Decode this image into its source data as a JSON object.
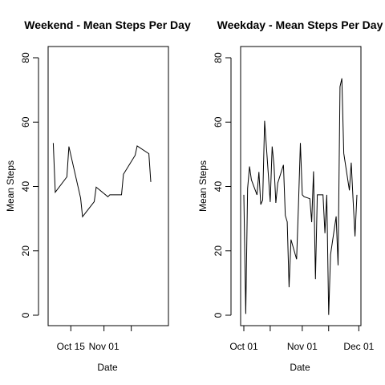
{
  "chart_data": [
    {
      "type": "line",
      "title": "Weekend - Mean Steps Per Day",
      "xlabel": "Date",
      "ylabel": "Mean Steps",
      "ylim": [
        0,
        80
      ],
      "yticks": [
        0,
        20,
        40,
        60,
        80
      ],
      "xlim": [
        "2012-10-05",
        "2012-12-02"
      ],
      "xticks": [
        {
          "date": "2012-10-15",
          "label": "Oct 15"
        },
        {
          "date": "2012-11-01",
          "label": "Nov 01"
        },
        {
          "date": "2012-11-15",
          "label": ""
        }
      ],
      "grid": false,
      "series": [
        {
          "color": "#000000",
          "x": [
            "2012-10-06",
            "2012-10-07",
            "2012-10-13",
            "2012-10-14",
            "2012-10-20",
            "2012-10-21",
            "2012-10-27",
            "2012-10-28",
            "2012-11-03",
            "2012-11-04",
            "2012-11-10",
            "2012-11-11",
            "2012-11-17",
            "2012-11-18",
            "2012-11-24",
            "2012-11-25"
          ],
          "y": [
            53.5,
            38.2,
            43.0,
            52.4,
            36.4,
            30.6,
            35.3,
            39.8,
            36.8,
            37.4,
            37.4,
            43.8,
            49.7,
            52.6,
            50.2,
            41.4
          ]
        }
      ]
    },
    {
      "type": "line",
      "title": "Weekday - Mean Steps Per Day",
      "xlabel": "Date",
      "ylabel": "Mean Steps",
      "ylim": [
        0,
        80
      ],
      "yticks": [
        0,
        20,
        40,
        60,
        80
      ],
      "xlim": [
        "2012-10-01",
        "2012-11-30"
      ],
      "xticks": [
        {
          "date": "2012-10-01",
          "label": "Oct 01"
        },
        {
          "date": "2012-10-15",
          "label": ""
        },
        {
          "date": "2012-11-01",
          "label": "Nov 01"
        },
        {
          "date": "2012-11-15",
          "label": ""
        },
        {
          "date": "2012-12-01",
          "label": "Dec 01"
        }
      ],
      "grid": false,
      "series": [
        {
          "color": "#000000",
          "x": [
            "2012-10-01",
            "2012-10-02",
            "2012-10-03",
            "2012-10-04",
            "2012-10-05",
            "2012-10-08",
            "2012-10-09",
            "2012-10-10",
            "2012-10-11",
            "2012-10-12",
            "2012-10-15",
            "2012-10-16",
            "2012-10-17",
            "2012-10-18",
            "2012-10-19",
            "2012-10-22",
            "2012-10-23",
            "2012-10-24",
            "2012-10-25",
            "2012-10-26",
            "2012-10-29",
            "2012-10-30",
            "2012-10-31",
            "2012-11-01",
            "2012-11-02",
            "2012-11-05",
            "2012-11-06",
            "2012-11-07",
            "2012-11-08",
            "2012-11-09",
            "2012-11-12",
            "2012-11-13",
            "2012-11-14",
            "2012-11-15",
            "2012-11-16",
            "2012-11-19",
            "2012-11-20",
            "2012-11-21",
            "2012-11-22",
            "2012-11-23",
            "2012-11-26",
            "2012-11-27",
            "2012-11-28",
            "2012-11-29",
            "2012-11-30"
          ],
          "y": [
            37.4,
            0.4,
            39.4,
            46.2,
            42.1,
            37.4,
            44.5,
            34.4,
            35.8,
            60.4,
            35.2,
            52.4,
            46.7,
            34.9,
            41.1,
            46.7,
            31.0,
            29.0,
            8.7,
            23.5,
            17.4,
            34.1,
            53.5,
            37.4,
            36.8,
            36.2,
            28.9,
            44.7,
            11.2,
            37.4,
            37.4,
            25.5,
            37.4,
            0.1,
            18.8,
            30.7,
            15.5,
            71.0,
            73.6,
            50.3,
            38.8,
            47.4,
            35.4,
            24.5,
            37.4
          ]
        }
      ]
    }
  ]
}
